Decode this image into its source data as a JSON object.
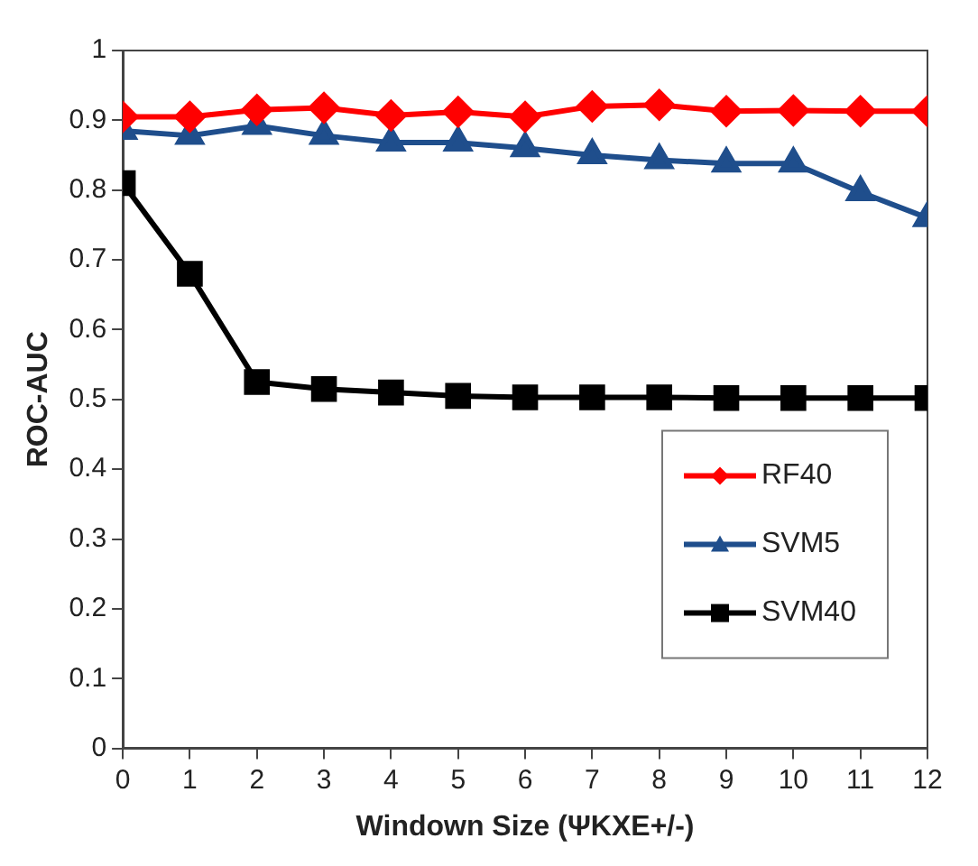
{
  "chart_data": {
    "type": "line",
    "xlabel": "Windown Size (ΨKXE+/-)",
    "ylabel": "ROC-AUC",
    "x": [
      0,
      1,
      2,
      3,
      4,
      5,
      6,
      7,
      8,
      9,
      10,
      11,
      12
    ],
    "xlim": [
      0,
      12
    ],
    "xticks": [
      0,
      1,
      2,
      3,
      4,
      5,
      6,
      7,
      8,
      9,
      10,
      11,
      12
    ],
    "ylim": [
      0,
      1
    ],
    "yticks": [
      0,
      0.1,
      0.2,
      0.3,
      0.4,
      0.5,
      0.6,
      0.7,
      0.8,
      0.9,
      1
    ],
    "grid": false,
    "legend": "bottom right",
    "line_style": "solid",
    "series": [
      {
        "name": "RF40",
        "color": "#ff0000",
        "marker": "diamond",
        "values": [
          0.905,
          0.905,
          0.915,
          0.918,
          0.907,
          0.912,
          0.905,
          0.92,
          0.922,
          0.913,
          0.914,
          0.913,
          0.913
        ]
      },
      {
        "name": "SVM5",
        "color": "#1f4e8c",
        "marker": "triangle",
        "values": [
          0.885,
          0.878,
          0.892,
          0.878,
          0.868,
          0.868,
          0.86,
          0.85,
          0.843,
          0.838,
          0.838,
          0.797,
          0.76
        ]
      },
      {
        "name": "SVM40",
        "color": "#000000",
        "marker": "square",
        "values": [
          0.81,
          0.68,
          0.525,
          0.515,
          0.51,
          0.505,
          0.503,
          0.503,
          0.503,
          0.502,
          0.502,
          0.502,
          0.502
        ]
      }
    ]
  }
}
